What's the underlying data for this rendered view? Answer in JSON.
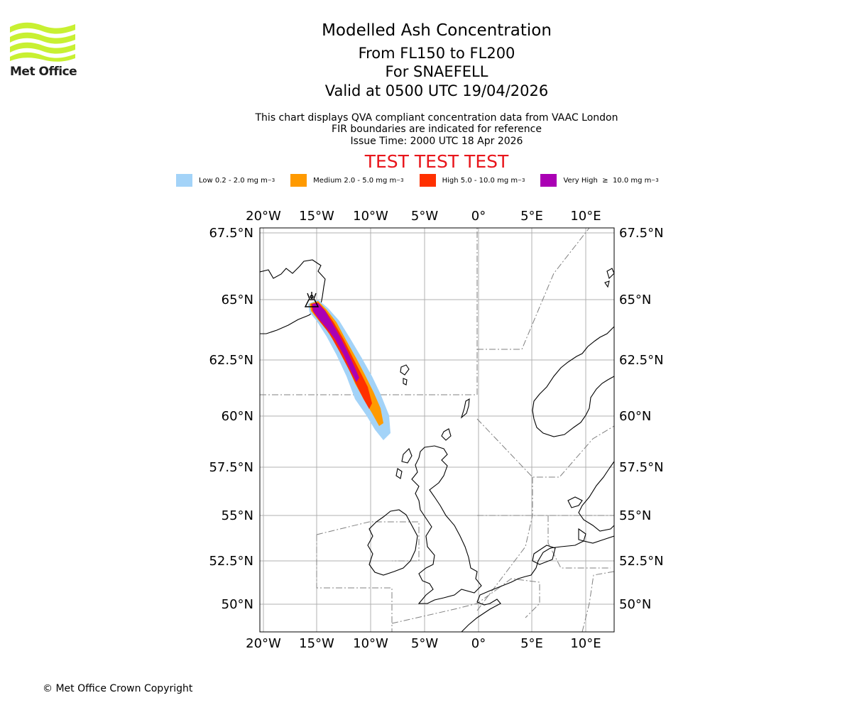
{
  "logo": {
    "text": "Met Office",
    "wave_color": "#c8f032"
  },
  "titles": {
    "main": "Modelled Ash Concentration",
    "level": "From FL150 to FL200",
    "volcano": "For SNAEFELL",
    "valid": "Valid at 0500 UTC 19/04/2026"
  },
  "subtitles": {
    "line1": "This chart displays QVA compliant concentration data from VAAC London",
    "line2": "FIR boundaries are indicated for reference",
    "line3": "Issue Time: 2000 UTC 18 Apr 2026"
  },
  "test_banner": {
    "text": "TEST TEST TEST",
    "color": "#e8151b"
  },
  "legend": [
    {
      "label": "Low 0.2 - 2.0 mg m",
      "sup": "−3",
      "color": "#a3d3f8"
    },
    {
      "label": "Medium 2.0 - 5.0 mg m",
      "sup": "−3",
      "color": "#ff9a00"
    },
    {
      "label": "High 5.0 - 10.0 mg m",
      "sup": "−3",
      "color": "#ff3000"
    },
    {
      "label": "Very High  ≥  10.0 mg m",
      "sup": "−3",
      "color": "#aa00b4"
    }
  ],
  "map": {
    "lon_labels": [
      "20°W",
      "15°W",
      "10°W",
      "5°W",
      "0°",
      "5°E",
      "10°E"
    ],
    "lat_labels": [
      "67.5°N",
      "65°N",
      "62.5°N",
      "60°N",
      "57.5°N",
      "55°N",
      "52.5°N",
      "50°N"
    ],
    "volcano_marker": "volcano-symbol"
  },
  "copyright": "© Met Office Crown Copyright"
}
